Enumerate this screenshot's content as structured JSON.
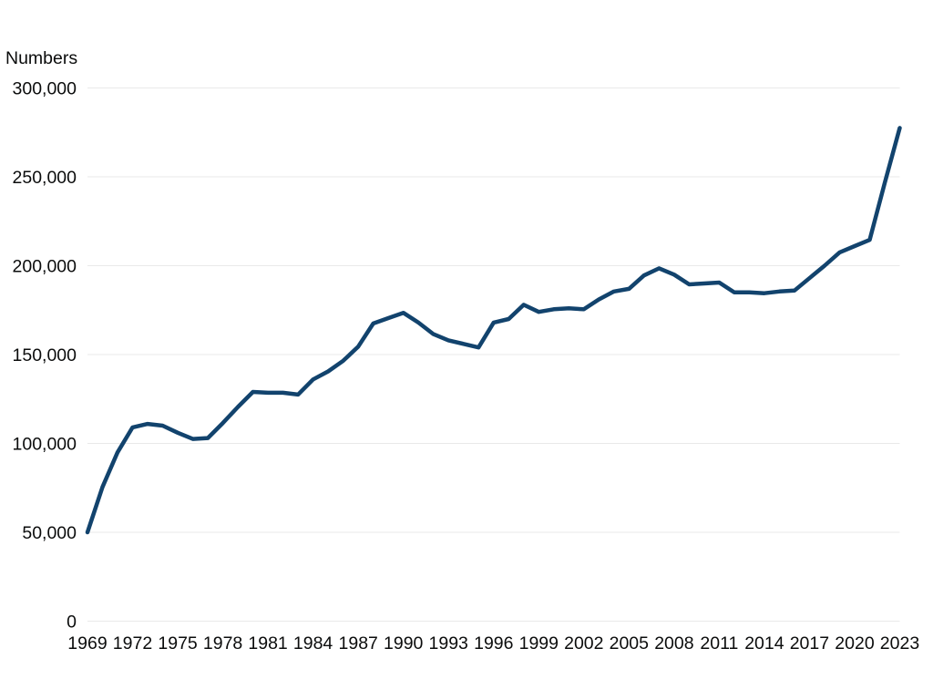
{
  "chart": {
    "ylabel": "Numbers"
  },
  "chart_data": {
    "type": "line",
    "title": "",
    "xlabel": "",
    "ylabel": "Numbers",
    "grid": "horizontal-only",
    "legend": "none",
    "line_color": "#12436D",
    "gridline_color": "#e9e9e9",
    "text_color": "#0b0c0c",
    "xlim": [
      1969,
      2023
    ],
    "ylim": [
      0,
      300000
    ],
    "y_ticks": [
      0,
      50000,
      100000,
      150000,
      200000,
      250000,
      300000
    ],
    "y_tick_labels": [
      "0",
      "50,000",
      "100,000",
      "150,000",
      "200,000",
      "250,000",
      "300,000"
    ],
    "x_tick_years": [
      1969,
      1972,
      1975,
      1978,
      1981,
      1984,
      1987,
      1990,
      1993,
      1996,
      1999,
      2002,
      2005,
      2008,
      2011,
      2014,
      2017,
      2020,
      2023
    ],
    "series": [
      {
        "name": "Numbers",
        "x": [
          1969,
          1970,
          1971,
          1972,
          1973,
          1974,
          1975,
          1976,
          1977,
          1978,
          1979,
          1980,
          1981,
          1982,
          1983,
          1984,
          1985,
          1986,
          1987,
          1988,
          1989,
          1990,
          1991,
          1992,
          1993,
          1994,
          1995,
          1996,
          1997,
          1998,
          1999,
          2000,
          2001,
          2002,
          2003,
          2004,
          2005,
          2006,
          2007,
          2008,
          2009,
          2010,
          2011,
          2012,
          2013,
          2014,
          2015,
          2016,
          2017,
          2018,
          2019,
          2020,
          2021,
          2022,
          2023
        ],
        "values": [
          50000,
          75500,
          95000,
          109000,
          111000,
          110000,
          106000,
          102500,
          103000,
          111500,
          120500,
          129000,
          128500,
          128500,
          127500,
          136000,
          140500,
          146500,
          154500,
          167500,
          170500,
          173500,
          168000,
          161500,
          158000,
          156000,
          154000,
          168000,
          170000,
          178000,
          174000,
          175500,
          176000,
          175500,
          181000,
          185500,
          187000,
          194500,
          198500,
          195000,
          189500,
          190000,
          190500,
          185000,
          185000,
          184500,
          185500,
          186000,
          193000,
          200000,
          207500,
          211000,
          214500,
          246500,
          277500
        ]
      }
    ]
  }
}
